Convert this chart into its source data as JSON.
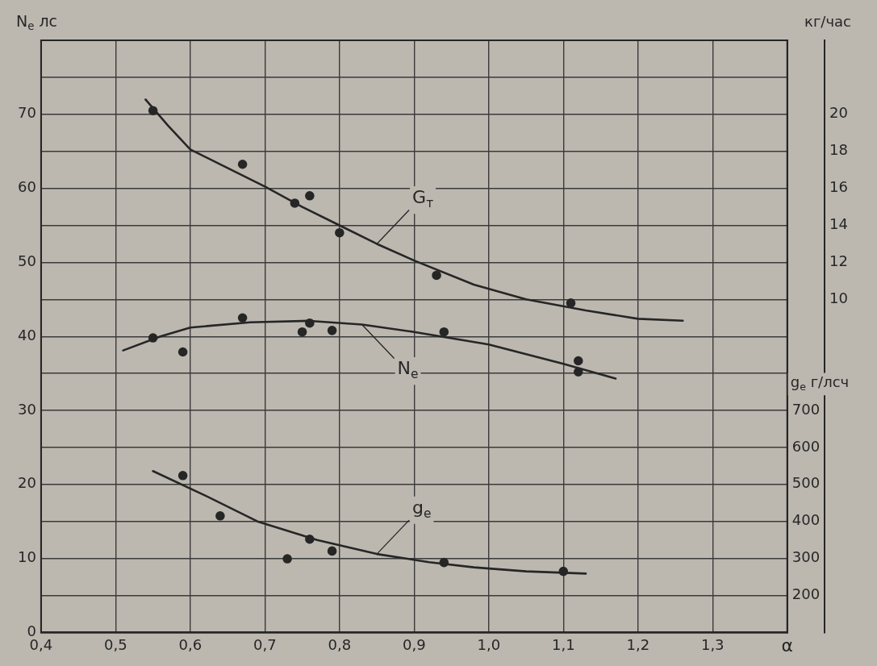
{
  "chart_data": {
    "type": "line",
    "xlabel": "α",
    "ylabel": "N$_{e}$ лс",
    "y2label": "кг/час",
    "y3label": "g$_{e}$ г/лсч",
    "xlim": [
      0.4,
      1.4
    ],
    "xticks": [
      {
        "value": 0.4,
        "label": "0,4"
      },
      {
        "value": 0.5,
        "label": "0,5"
      },
      {
        "value": 0.6,
        "label": "0,6"
      },
      {
        "value": 0.7,
        "label": "0,7"
      },
      {
        "value": 0.8,
        "label": "0,8"
      },
      {
        "value": 0.9,
        "label": "0,9"
      },
      {
        "value": 1.0,
        "label": "1,0"
      },
      {
        "value": 1.1,
        "label": "1,1"
      },
      {
        "value": 1.2,
        "label": "1,2"
      },
      {
        "value": 1.3,
        "label": "1,3"
      }
    ],
    "ylim": [
      0,
      80
    ],
    "yticks": [
      0,
      {
        "value": 5,
        "label": null
      },
      10,
      {
        "value": 15,
        "label": null
      },
      20,
      {
        "value": 25,
        "label": null
      },
      30,
      {
        "value": 35,
        "label": null
      },
      40,
      {
        "value": 45,
        "label": null
      },
      50,
      {
        "value": 55,
        "label": null
      },
      60,
      {
        "value": 65,
        "label": null
      },
      70,
      {
        "value": 75,
        "label": null
      }
    ],
    "y2lim": [
      -8,
      24
    ],
    "y2ticks": [
      10,
      12,
      14,
      16,
      18,
      20
    ],
    "y3lim": [
      100,
      1700
    ],
    "y3ticks": [
      200,
      300,
      400,
      500,
      600,
      700
    ],
    "grid": true,
    "legend": false,
    "series": [
      {
        "name": "G$_{т}$",
        "type": "line",
        "axis": "y2",
        "marker": "none",
        "color": "#262626",
        "x": [
          0.54,
          0.57,
          0.6,
          0.65,
          0.7,
          0.75,
          0.8,
          0.85,
          0.9,
          0.98,
          1.05,
          1.13,
          1.2,
          1.26
        ],
        "values": [
          20.8,
          19.4,
          18.1,
          17.1,
          16.1,
          15.0,
          14.0,
          13.0,
          12.1,
          10.8,
          10.0,
          9.4,
          8.95,
          8.85
        ]
      },
      {
        "type": "scatter",
        "axis": "y2",
        "marker": "circle",
        "color": "#262626",
        "x": [
          0.55,
          0.67,
          0.76,
          0.74,
          0.8,
          0.93,
          1.11
        ],
        "values": [
          20.2,
          17.3,
          15.6,
          15.2,
          13.6,
          11.3,
          9.8
        ]
      },
      {
        "name": "N$_{e}$",
        "type": "line",
        "marker": "none",
        "color": "#262626",
        "x": [
          0.51,
          0.56,
          0.6,
          0.68,
          0.76,
          0.83,
          0.9,
          1.0,
          1.05,
          1.1,
          1.17
        ],
        "values": [
          38.1,
          40.0,
          41.2,
          41.9,
          42.1,
          41.6,
          40.6,
          38.9,
          37.6,
          36.3,
          34.3
        ]
      },
      {
        "type": "scatter",
        "marker": "circle",
        "color": "#262626",
        "x": [
          0.55,
          0.59,
          0.67,
          0.75,
          0.76,
          0.79,
          0.94,
          1.12,
          1.12
        ],
        "values": [
          39.8,
          37.9,
          42.5,
          40.6,
          41.8,
          40.8,
          40.6,
          36.7,
          35.2
        ]
      },
      {
        "name": "g$_{e}$",
        "type": "line",
        "axis": "y3",
        "marker": "none",
        "color": "#262626",
        "x": [
          0.55,
          0.62,
          0.69,
          0.77,
          0.85,
          0.92,
          0.98,
          1.05,
          1.13
        ],
        "values": [
          536,
          470,
          400,
          350,
          312,
          290,
          276,
          265,
          259
        ]
      },
      {
        "type": "scatter",
        "axis": "y3",
        "marker": "circle",
        "color": "#262626",
        "x": [
          0.59,
          0.64,
          0.76,
          0.79,
          0.73,
          0.94,
          1.1
        ],
        "values": [
          524,
          415,
          352,
          320,
          299,
          289,
          265
        ]
      }
    ]
  }
}
